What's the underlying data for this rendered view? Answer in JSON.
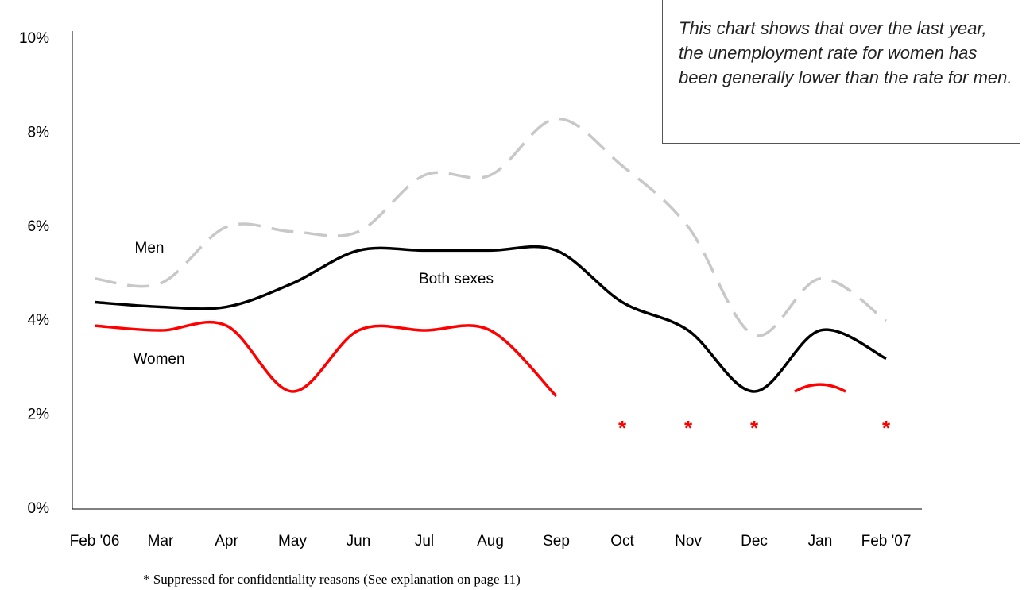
{
  "chart_data": {
    "type": "line",
    "categories": [
      "Feb '06",
      "Mar",
      "Apr",
      "May",
      "Jun",
      "Jul",
      "Aug",
      "Sep",
      "Oct",
      "Nov",
      "Dec",
      "Jan",
      "Feb '07"
    ],
    "series": [
      {
        "name": "Men",
        "color": "#c8c8c8",
        "dashed": true,
        "values": [
          4.9,
          4.8,
          6.0,
          5.9,
          5.9,
          7.1,
          7.1,
          8.3,
          7.3,
          6.0,
          3.7,
          4.9,
          4.0
        ]
      },
      {
        "name": "Both sexes",
        "color": "#000000",
        "dashed": false,
        "values": [
          4.4,
          4.3,
          4.3,
          4.8,
          5.5,
          5.5,
          5.5,
          5.5,
          4.4,
          3.8,
          2.5,
          3.8,
          3.2
        ]
      },
      {
        "name": "Women",
        "color": "#ff0000",
        "dashed": false,
        "values": [
          3.9,
          3.8,
          3.9,
          2.5,
          3.8,
          3.8,
          3.8,
          2.4,
          null,
          null,
          null,
          2.6,
          null
        ]
      }
    ],
    "ylim": [
      0,
      10
    ],
    "yticks": [
      {
        "value": 0,
        "label": "0%"
      },
      {
        "value": 2,
        "label": "2%"
      },
      {
        "value": 4,
        "label": "4%"
      },
      {
        "value": 6,
        "label": "6%"
      },
      {
        "value": 8,
        "label": "8%"
      },
      {
        "value": 10,
        "label": "10%"
      }
    ],
    "annotations": [
      {
        "text": "*",
        "category": "Oct"
      },
      {
        "text": "*",
        "category": "Nov"
      },
      {
        "text": "*",
        "category": "Dec"
      },
      {
        "text": "*",
        "category": "Feb '07"
      }
    ],
    "callout": "This chart shows that over the last year, the unemployment rate for women has been generally lower than the rate for men.",
    "footnote": "* Suppressed for confidentiality reasons  (See explanation on page 11)"
  }
}
